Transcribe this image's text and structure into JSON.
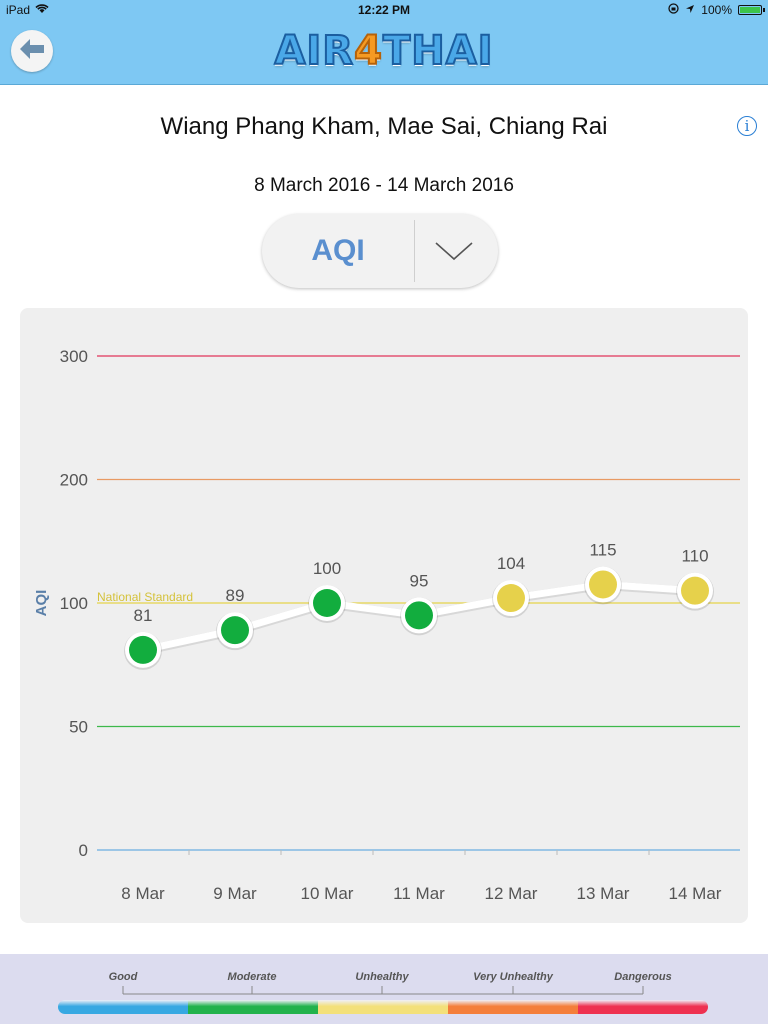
{
  "status_bar": {
    "device": "iPad",
    "time": "12:22 PM",
    "battery": "100%"
  },
  "header": {
    "logo_part1": "AIR",
    "logo_part2": "4",
    "logo_part3": "THAI"
  },
  "station": {
    "name": "Wiang Phang Kham, Mae Sai, Chiang Rai",
    "date_range": "8 March 2016 - 14 March 2016"
  },
  "parameter_select": {
    "selected": "AQI"
  },
  "colors": {
    "good": "#12ad3e",
    "moderate": "#e6d14b",
    "header_bg": "#7ec8f3",
    "accent_blue": "#5a8fcf"
  },
  "chart_data": {
    "type": "line",
    "ylabel": "AQI",
    "categories": [
      "8 Mar",
      "9 Mar",
      "10 Mar",
      "11 Mar",
      "12 Mar",
      "13 Mar",
      "14 Mar"
    ],
    "values": [
      81,
      89,
      100,
      95,
      104,
      115,
      110
    ],
    "point_colors": [
      "#12ad3e",
      "#12ad3e",
      "#12ad3e",
      "#12ad3e",
      "#e6d14b",
      "#e6d14b",
      "#e6d14b"
    ],
    "y_ticks": [
      0,
      50,
      100,
      200,
      300
    ],
    "y_scale": "piecewise-linear (0-100 and 100-300 segments equal height)",
    "reference_lines": [
      {
        "value": 0,
        "color": "#6aaee0"
      },
      {
        "value": 50,
        "color": "#3db84a"
      },
      {
        "value": 100,
        "color": "#e5d34a",
        "label": "National Standard"
      },
      {
        "value": 200,
        "color": "#e89a63"
      },
      {
        "value": 300,
        "color": "#e0355a"
      }
    ],
    "grid": false
  },
  "legend": {
    "labels": [
      "Good",
      "Moderate",
      "Unhealthy",
      "Very  Unhealthy",
      "Dangerous"
    ],
    "segment_colors": [
      "#37a8e2",
      "#22b24c",
      "#f3e07a",
      "#f47e3a",
      "#ee3150"
    ]
  }
}
